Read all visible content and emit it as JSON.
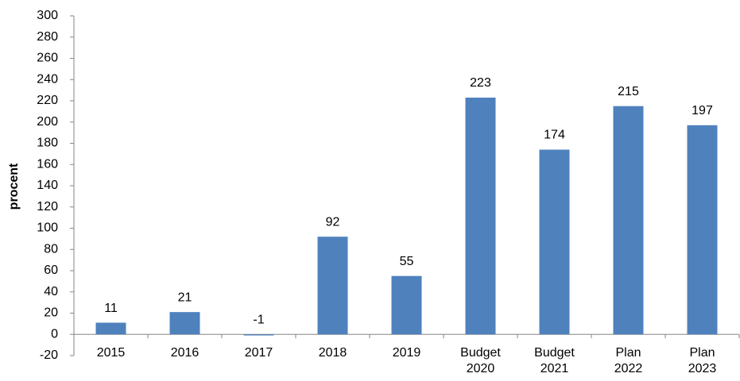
{
  "chart_data": {
    "type": "bar",
    "y_label": "procent",
    "categories": [
      "2015",
      "2016",
      "2017",
      "2018",
      "2019",
      "Budget 2020",
      "Budget 2021",
      "Plan 2022",
      "Plan 2023"
    ],
    "values": [
      11,
      21,
      -1,
      92,
      55,
      223,
      174,
      215,
      197
    ],
    "color": "#4f81bd",
    "ylim": [
      -20,
      300
    ],
    "yticks": [
      -20,
      0,
      20,
      40,
      60,
      80,
      100,
      120,
      140,
      160,
      180,
      200,
      220,
      240,
      260,
      280,
      300
    ],
    "grid": false
  }
}
